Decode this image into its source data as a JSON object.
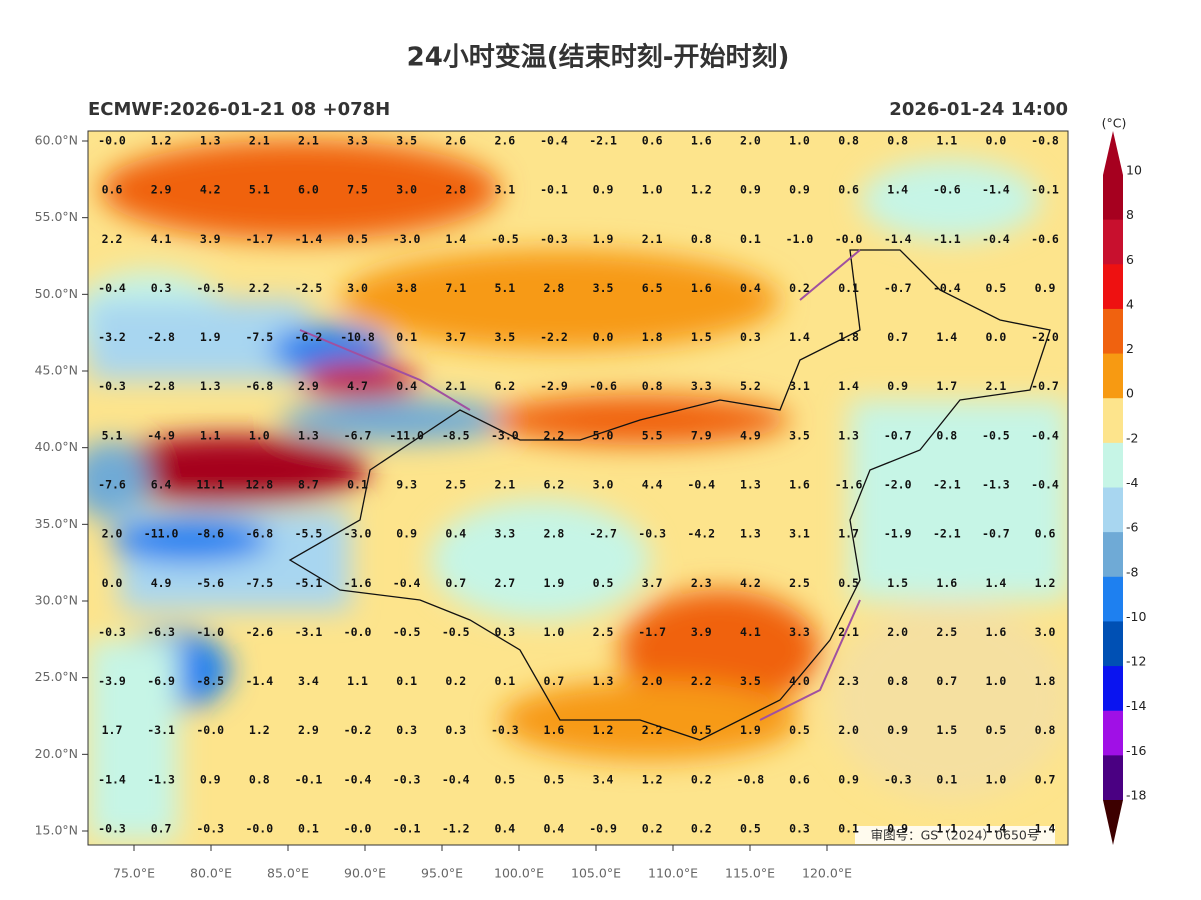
{
  "header": {
    "title": "24小时变温(结束时刻-开始时刻)",
    "left": "ECMWF:2026-01-21 08 +078H",
    "right": "2026-01-24 14:00"
  },
  "lat_labels": [
    "60.0°N",
    "55.0°N",
    "50.0°N",
    "45.0°N",
    "40.0°N",
    "35.0°N",
    "30.0°N",
    "25.0°N",
    "20.0°N",
    "15.0°N"
  ],
  "lon_labels": [
    "75.0°E",
    "80.0°E",
    "85.0°E",
    "90.0°E",
    "95.0°E",
    "100.0°E",
    "105.0°E",
    "110.0°E",
    "115.0°E",
    "120.0°E"
  ],
  "grid": [
    [
      "-0.0",
      "1.2",
      "1.3",
      "2.1",
      "2.1",
      "3.3",
      "3.5",
      "2.6",
      "2.6",
      "-0.4",
      "-2.1",
      "0.6",
      "1.6",
      "2.0",
      "1.0",
      "0.8",
      "0.8",
      "1.1",
      "0.0",
      "-0.8"
    ],
    [
      "0.6",
      "2.9",
      "4.2",
      "5.1",
      "6.0",
      "7.5",
      "3.0",
      "2.8",
      "3.1",
      "-0.1",
      "0.9",
      "1.0",
      "1.2",
      "0.9",
      "0.9",
      "0.6",
      "1.4",
      "-0.6",
      "-1.4",
      "-0.1"
    ],
    [
      "2.2",
      "4.1",
      "3.9",
      "-1.7",
      "-1.4",
      "0.5",
      "-3.0",
      "1.4",
      "-0.5",
      "-0.3",
      "1.9",
      "2.1",
      "0.8",
      "0.1",
      "-1.0",
      "-0.0",
      "-1.4",
      "-1.1",
      "-0.4",
      "-0.6"
    ],
    [
      "-0.4",
      "0.3",
      "-0.5",
      "2.2",
      "-2.5",
      "3.0",
      "3.8",
      "7.1",
      "5.1",
      "2.8",
      "3.5",
      "6.5",
      "1.6",
      "0.4",
      "0.2",
      "0.1",
      "-0.7",
      "-0.4",
      "0.5",
      "0.9"
    ],
    [
      "-3.2",
      "-2.8",
      "1.9",
      "-7.5",
      "-6.2",
      "-10.8",
      "0.1",
      "3.7",
      "3.5",
      "-2.2",
      "0.0",
      "1.8",
      "1.5",
      "0.3",
      "1.4",
      "1.8",
      "0.7",
      "1.4",
      "0.0",
      "-2.0"
    ],
    [
      "-0.3",
      "-2.8",
      "1.3",
      "-6.8",
      "2.9",
      "4.7",
      "0.4",
      "2.1",
      "6.2",
      "-2.9",
      "-0.6",
      "0.8",
      "3.3",
      "5.2",
      "3.1",
      "1.4",
      "0.9",
      "1.7",
      "2.1",
      "-0.7"
    ],
    [
      "5.1",
      "-4.9",
      "1.1",
      "1.0",
      "1.3",
      "-6.7",
      "-11.0",
      "-8.5",
      "-3.0",
      "2.2",
      "5.0",
      "5.5",
      "7.9",
      "4.9",
      "3.5",
      "1.3",
      "-0.7",
      "0.8",
      "-0.5",
      "-0.4"
    ],
    [
      "-7.6",
      "6.4",
      "11.1",
      "12.8",
      "8.7",
      "0.1",
      "9.3",
      "2.5",
      "2.1",
      "6.2",
      "3.0",
      "4.4",
      "-0.4",
      "1.3",
      "1.6",
      "-1.6",
      "-2.0",
      "-2.1",
      "-1.3",
      "-0.4"
    ],
    [
      "2.0",
      "-11.0",
      "-8.6",
      "-6.8",
      "-5.5",
      "-3.0",
      "0.9",
      "0.4",
      "3.3",
      "2.8",
      "-2.7",
      "-0.3",
      "-4.2",
      "1.3",
      "3.1",
      "1.7",
      "-1.9",
      "-2.1",
      "-0.7",
      "0.6"
    ],
    [
      "0.0",
      "4.9",
      "-5.6",
      "-7.5",
      "-5.1",
      "-1.6",
      "-0.4",
      "0.7",
      "2.7",
      "1.9",
      "0.5",
      "3.7",
      "2.3",
      "4.2",
      "2.5",
      "0.5",
      "1.5",
      "1.6",
      "1.4",
      "1.2"
    ],
    [
      "-0.3",
      "-6.3",
      "-1.0",
      "-2.6",
      "-3.1",
      "-0.0",
      "-0.5",
      "-0.5",
      "0.3",
      "1.0",
      "2.5",
      "-1.7",
      "3.9",
      "4.1",
      "3.3",
      "2.1",
      "2.0",
      "2.5",
      "1.6",
      "3.0"
    ],
    [
      "-3.9",
      "-6.9",
      "-8.5",
      "-1.4",
      "3.4",
      "1.1",
      "0.1",
      "0.2",
      "0.1",
      "0.7",
      "1.3",
      "2.0",
      "2.2",
      "3.5",
      "4.0",
      "2.3",
      "0.8",
      "0.7",
      "1.0",
      "1.8"
    ],
    [
      "1.7",
      "-3.1",
      "-0.0",
      "1.2",
      "2.9",
      "-0.2",
      "0.3",
      "0.3",
      "-0.3",
      "1.6",
      "1.2",
      "2.2",
      "0.5",
      "1.9",
      "0.5",
      "2.0",
      "0.9",
      "1.5",
      "0.5",
      "0.8"
    ],
    [
      "-1.4",
      "-1.3",
      "0.9",
      "0.8",
      "-0.1",
      "-0.4",
      "-0.3",
      "-0.4",
      "0.5",
      "0.5",
      "3.4",
      "1.2",
      "0.2",
      "-0.8",
      "0.6",
      "0.9",
      "-0.3",
      "0.1",
      "1.0",
      "0.7"
    ],
    [
      "-0.3",
      "0.7",
      "-0.3",
      "-0.0",
      "0.1",
      "-0.0",
      "-0.1",
      "-1.2",
      "0.4",
      "0.4",
      "-0.9",
      "0.2",
      "0.2",
      "0.5",
      "0.3",
      "0.1",
      "0.9",
      "1.1",
      "1.4",
      "1.4"
    ]
  ],
  "colorbar": {
    "unit": "(°C)",
    "labels": [
      "10",
      "8",
      "6",
      "4",
      "2",
      "0",
      "-2",
      "-4",
      "-6",
      "-8",
      "-10",
      "-12",
      "-14",
      "-16",
      "-18"
    ],
    "colors": [
      "#a6001f",
      "#c8102e",
      "#ee1111",
      "#f0620f",
      "#f79a12",
      "#fde48c",
      "#c6f5e6",
      "#a8d6f0",
      "#6faad6",
      "#1e80f0",
      "#0050b4",
      "#0a14f0",
      "#a010e6",
      "#4a0082",
      "#7a0000",
      "#3d0000"
    ]
  },
  "watermark": "审图号：GS（2024）0650号"
}
